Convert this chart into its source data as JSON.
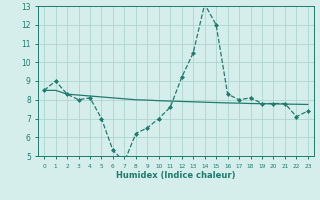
{
  "title": "",
  "xlabel": "Humidex (Indice chaleur)",
  "background_color": "#d5eeec",
  "grid_color": "#aed4d0",
  "line_color": "#1e7b6e",
  "xlim": [
    -0.5,
    23.5
  ],
  "ylim": [
    5,
    13
  ],
  "xtick_positions": [
    0,
    1,
    2,
    3,
    4,
    5,
    6,
    7,
    8,
    9,
    10,
    11,
    12,
    13,
    14,
    15,
    16,
    17,
    18,
    19,
    20,
    21,
    22,
    23
  ],
  "xtick_labels": [
    "0",
    "1",
    "2",
    "3",
    "4",
    "5",
    "6",
    "7",
    "8",
    "9",
    "10",
    "11",
    "12",
    "13",
    "14",
    "15",
    "16",
    "17",
    "18",
    "19",
    "20",
    "21",
    "22",
    "23"
  ],
  "ytick_positions": [
    5,
    6,
    7,
    8,
    9,
    10,
    11,
    12,
    13
  ],
  "ytick_labels": [
    "5",
    "6",
    "7",
    "8",
    "9",
    "10",
    "11",
    "12",
    "13"
  ],
  "line1_x": [
    0,
    1,
    2,
    3,
    4,
    5,
    6,
    7,
    8,
    9,
    10,
    11,
    12,
    13,
    14,
    15,
    16,
    17,
    18,
    19,
    20,
    21,
    22,
    23
  ],
  "line1_y": [
    8.5,
    9.0,
    8.3,
    8.0,
    8.1,
    7.0,
    5.3,
    4.7,
    6.2,
    6.5,
    7.0,
    7.6,
    9.2,
    10.5,
    13.1,
    12.0,
    8.3,
    8.0,
    8.1,
    7.8,
    7.8,
    7.8,
    7.1,
    7.4
  ],
  "line2_x": [
    0,
    1,
    2,
    3,
    4,
    5,
    6,
    7,
    8,
    9,
    10,
    11,
    12,
    13,
    14,
    15,
    16,
    17,
    18,
    19,
    20,
    21,
    22,
    23
  ],
  "line2_y": [
    8.5,
    8.5,
    8.3,
    8.25,
    8.2,
    8.15,
    8.1,
    8.05,
    8.0,
    7.98,
    7.95,
    7.93,
    7.91,
    7.89,
    7.87,
    7.85,
    7.83,
    7.82,
    7.8,
    7.79,
    7.78,
    7.77,
    7.76,
    7.75
  ]
}
